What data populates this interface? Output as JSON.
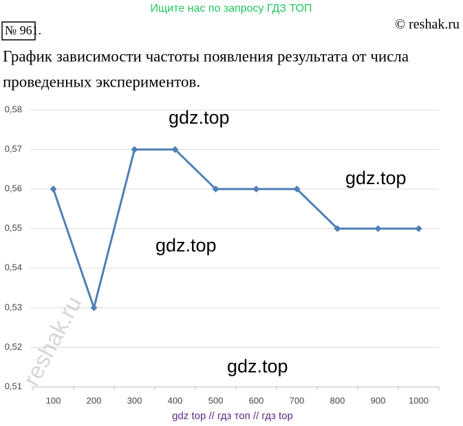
{
  "header": {
    "search_hint": "Ищите нас по запросу ГДЗ ТОП",
    "number": "№ 961.",
    "copyright": "© reshak.ru"
  },
  "text_lines": [
    "График зависимости частоты появления результата от числа",
    "проведенных экспериментов."
  ],
  "watermarks": [
    "gdz.top",
    "gdz.top",
    "gdz.top",
    "gdz.top",
    "reshak.ru"
  ],
  "footer": "gdz top  //  гдз топ  //  гдз top",
  "chart_data": {
    "type": "line",
    "categories": [
      "100",
      "200",
      "300",
      "400",
      "500",
      "600",
      "700",
      "800",
      "900",
      "1000"
    ],
    "values": [
      0.56,
      0.53,
      0.57,
      0.57,
      0.56,
      0.56,
      0.56,
      0.55,
      0.55,
      0.55
    ],
    "color": "#4f7fb5",
    "ylim": [
      0.51,
      0.58
    ],
    "yticks": [
      {
        "value": 0.51,
        "label": "0,51"
      },
      {
        "value": 0.52,
        "label": "0,52"
      },
      {
        "value": 0.53,
        "label": "0,53"
      },
      {
        "value": 0.54,
        "label": "0,54"
      },
      {
        "value": 0.55,
        "label": "0,55"
      },
      {
        "value": 0.56,
        "label": "0,56"
      },
      {
        "value": 0.57,
        "label": "0,57"
      },
      {
        "value": 0.58,
        "label": "0,58"
      }
    ],
    "grid": true
  }
}
